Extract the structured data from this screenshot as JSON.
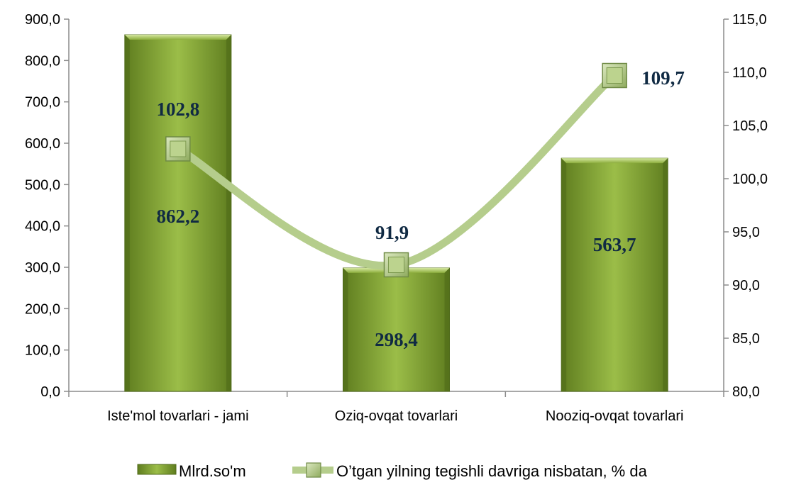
{
  "chart_data": {
    "type": "bar",
    "categories": [
      "Iste'mol tovarlari - jami",
      "Oziq-ovqat tovarlari",
      "Nooziq-ovqat tovarlari"
    ],
    "series": [
      {
        "name": "Mlrd.so'm",
        "type": "bar",
        "axis": "left",
        "values": [
          862.2,
          298.4,
          563.7
        ],
        "labels": [
          "862,2",
          "298,4",
          "563,7"
        ]
      },
      {
        "name": "O’tgan yilning tegishli davriga nisbatan, % da",
        "type": "line",
        "axis": "right",
        "values": [
          102.8,
          91.9,
          109.7
        ],
        "labels": [
          "102,8",
          "91,9",
          "109,7"
        ]
      }
    ],
    "y_left": {
      "ylim": [
        0,
        900
      ],
      "ticks": [
        "0,0",
        "100,0",
        "200,0",
        "300,0",
        "400,0",
        "500,0",
        "600,0",
        "700,0",
        "800,0",
        "900,0"
      ]
    },
    "y_right": {
      "ylim": [
        80,
        115
      ],
      "ticks": [
        "80,0",
        "85,0",
        "90,0",
        "95,0",
        "100,0",
        "105,0",
        "110,0",
        "115,0"
      ]
    },
    "grid": false,
    "legend": "bottom",
    "colors": {
      "bar": "#8aab3a",
      "bar_dark": "#5d7a1f",
      "line": "#b5cd8c",
      "marker": "#a9c27c",
      "label": "#102a43",
      "axis": "#8c8c8c"
    }
  }
}
